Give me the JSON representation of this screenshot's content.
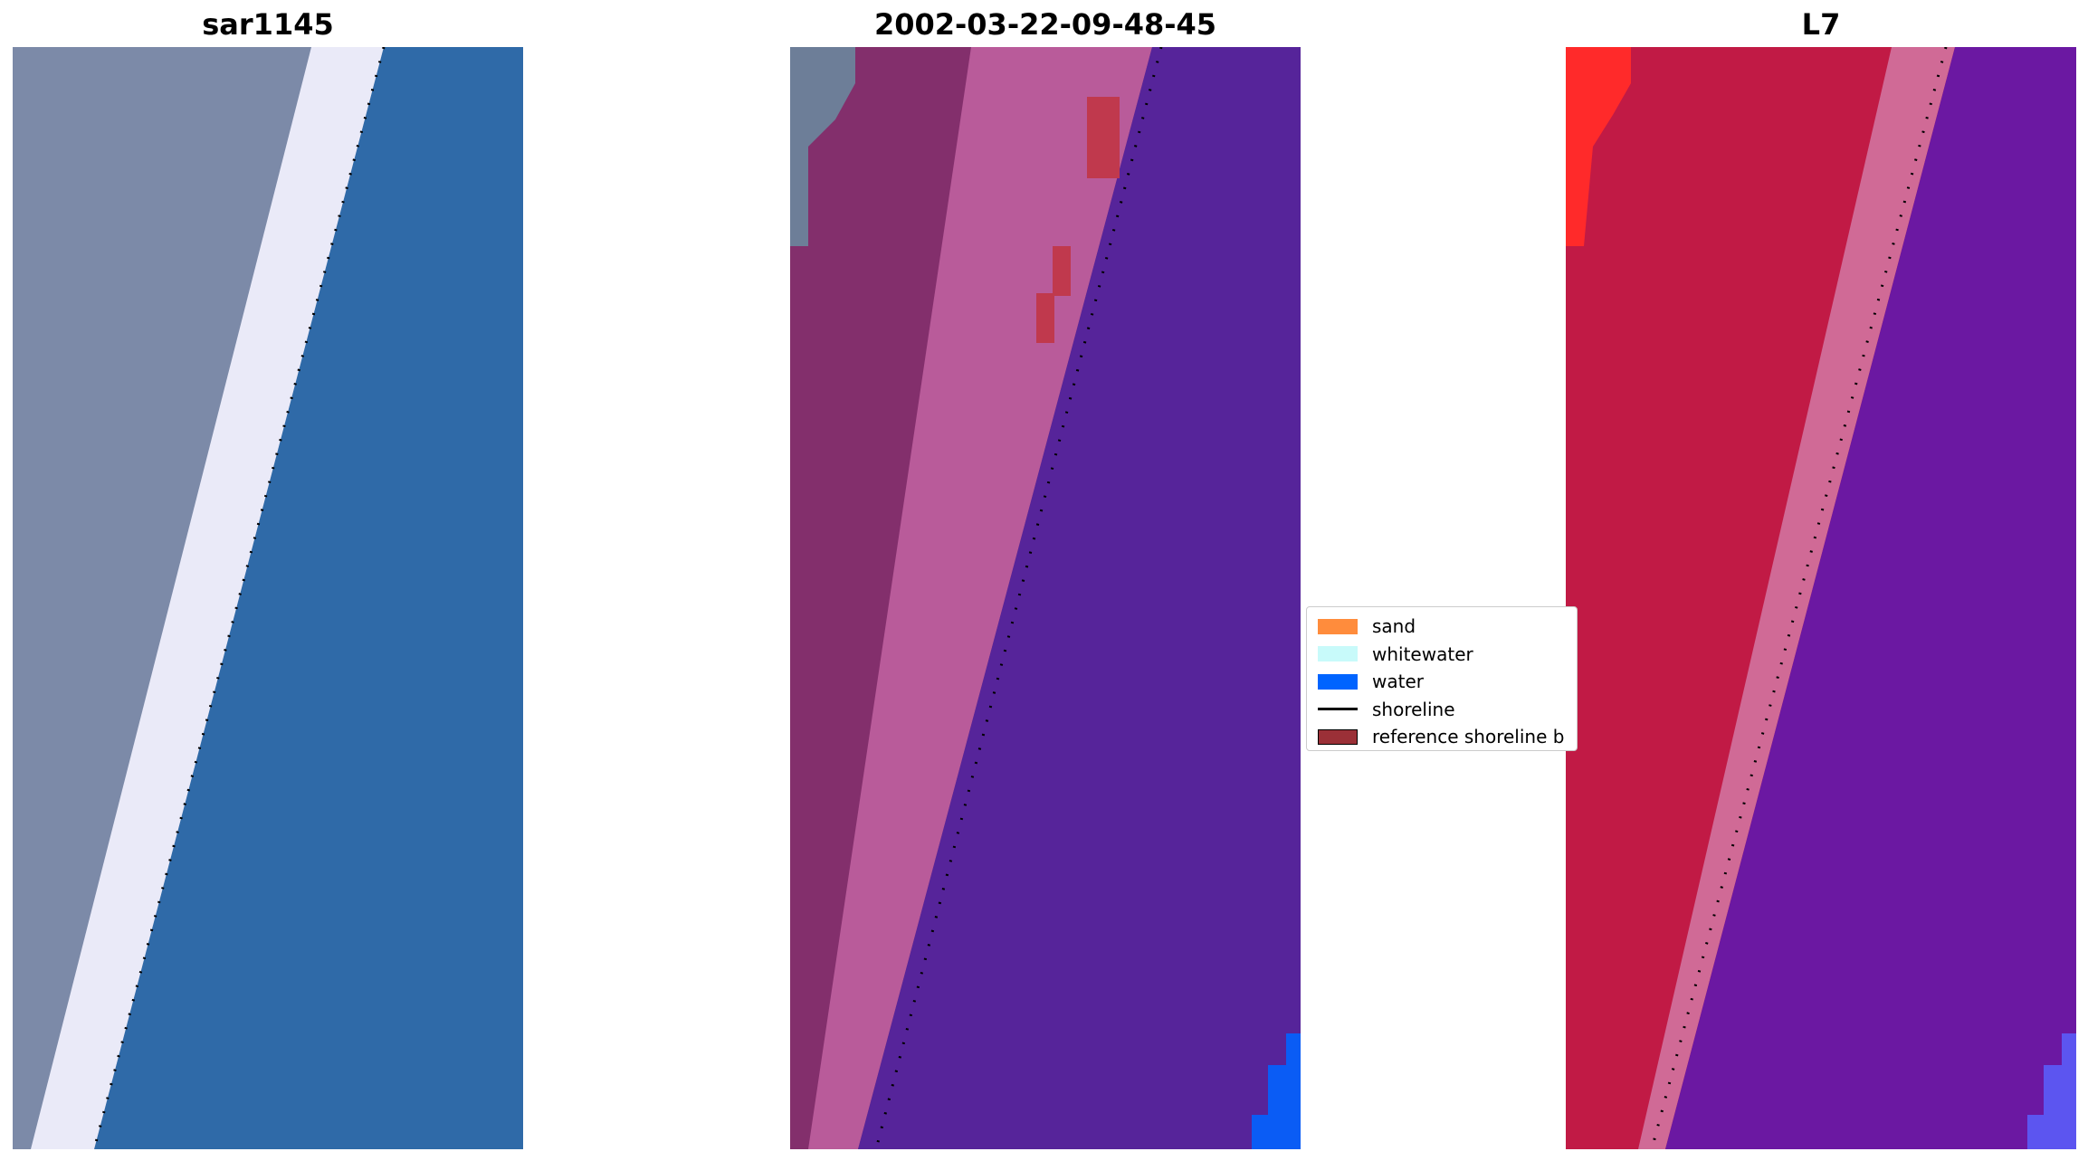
{
  "panels": [
    {
      "title": "sar1145",
      "kind": "rgb"
    },
    {
      "title": "2002-03-22-09-48-45",
      "kind": "classified"
    },
    {
      "title": "L7",
      "kind": "index"
    }
  ],
  "legend": {
    "items": [
      {
        "label": "sand",
        "color": "#ff8c3c",
        "type": "patch"
      },
      {
        "label": "whitewater",
        "color": "#c8fafa",
        "type": "patch"
      },
      {
        "label": "water",
        "color": "#0064ff",
        "type": "patch"
      },
      {
        "label": "shoreline",
        "color": "#000000",
        "type": "line"
      },
      {
        "label": "reference shoreline b",
        "color": "#9b3037",
        "type": "patch"
      }
    ]
  },
  "colors": {
    "rgb_land": "#7c8aa8",
    "rgb_beach": "#eaeaf8",
    "rgb_water": "#2f6aa8",
    "class_land": "#832f6c",
    "class_beach": "#b95b9a",
    "class_water": "#56249a",
    "class_ref": "#c0394d",
    "class_grey": "#6d7e98",
    "class_waterpatch": "#0a5cf5",
    "idx_land": "#c11a45",
    "idx_beach": "#d06a96",
    "idx_water": "#6b18a2",
    "idx_red": "#ff2a2a",
    "idx_waterpatch": "#5c55f0"
  }
}
